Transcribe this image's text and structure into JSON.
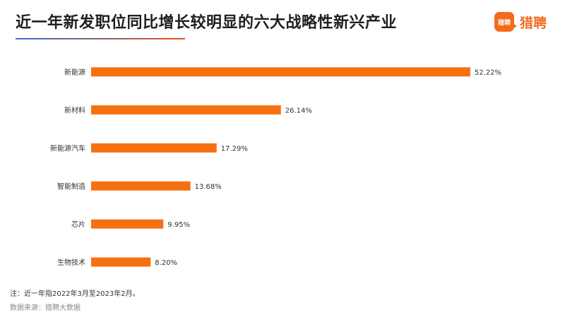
{
  "page": {
    "title": "近一年新发职位同比增长较明显的六大战略性新兴产业",
    "logo_icon_text": "猎聘",
    "logo_text": "猎聘",
    "note": "注：近一年指2022年3月至2023年2月。",
    "source": "数据来源：猎聘大数据"
  },
  "colors": {
    "bar": "#f5700f",
    "accent": "#f26b1d"
  },
  "chart_data": {
    "type": "bar",
    "orientation": "horizontal",
    "title": "近一年新发职位同比增长较明显的六大战略性新兴产业",
    "unit": "%",
    "xlim": [
      0,
      53.5
    ],
    "grid": false,
    "categories": [
      "新能源",
      "新材料",
      "新能源汽车",
      "智能制造",
      "芯片",
      "生物技术"
    ],
    "values": [
      52.22,
      26.14,
      17.29,
      13.68,
      9.95,
      8.2
    ],
    "labels": [
      "52.22%",
      "26.14%",
      "17.29%",
      "13.68%",
      "9.95%",
      "8.20%"
    ]
  }
}
